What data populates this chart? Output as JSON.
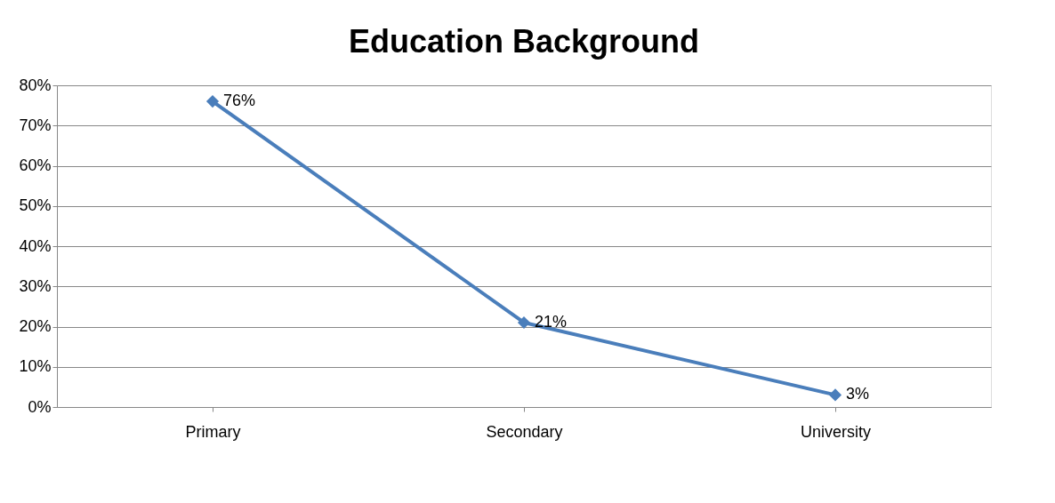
{
  "chart_data": {
    "type": "line",
    "title": "Education Background",
    "categories": [
      "Primary",
      "Secondary",
      "University"
    ],
    "series": [
      {
        "color": "#4a7ebb",
        "values": [
          76,
          21,
          3
        ],
        "value_labels": [
          "76%",
          "21%",
          "3%"
        ]
      }
    ],
    "ylim": [
      0,
      80
    ],
    "yticks": [
      {
        "value": 0,
        "label": "0%"
      },
      {
        "value": 10,
        "label": "10%"
      },
      {
        "value": 20,
        "label": "20%"
      },
      {
        "value": 30,
        "label": "30%"
      },
      {
        "value": 40,
        "label": "40%"
      },
      {
        "value": 50,
        "label": "50%"
      },
      {
        "value": 60,
        "label": "60%"
      },
      {
        "value": 70,
        "label": "70%"
      },
      {
        "value": 80,
        "label": "80%"
      }
    ],
    "grid": "y",
    "marker": "diamond",
    "line_style": "solid"
  }
}
